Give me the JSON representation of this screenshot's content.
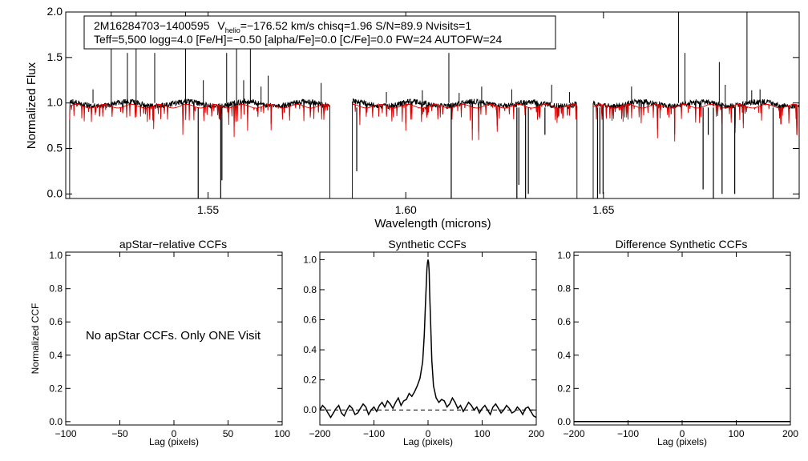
{
  "chart_data": [
    {
      "type": "line",
      "title": "",
      "info_line1": {
        "star_id": "2M16284703−1400595",
        "v_label": "V",
        "v_sub": "helio",
        "v_value": "=−176.52 km/s  chisq=1.96  S/N=89.9  Nvisits=1"
      },
      "info_line2": "Teff=5,500 logg=4.0 [Fe/H]=−0.50 [alpha/Fe]=0.0 [C/Fe]=0.0 FW=24 AUTOFW=24",
      "xlabel": "Wavelength (microns)",
      "ylabel": "Normalized Flux",
      "xlim": [
        1.514,
        1.6995
      ],
      "ylim": [
        -0.05,
        2.0
      ],
      "x_ticks": [
        {
          "v": 1.55,
          "label": "1.55"
        },
        {
          "v": 1.6,
          "label": "1.60"
        },
        {
          "v": 1.65,
          "label": "1.65"
        }
      ],
      "y_ticks": [
        {
          "v": 0.0,
          "label": "0.0"
        },
        {
          "v": 0.5,
          "label": "0.5"
        },
        {
          "v": 1.0,
          "label": "1.0"
        },
        {
          "v": 1.5,
          "label": "1.5"
        },
        {
          "v": 2.0,
          "label": "2.0"
        }
      ],
      "series": [
        {
          "name": "observed",
          "color": "#000000"
        },
        {
          "name": "synthetic",
          "color": "#dd0000"
        }
      ],
      "chips": [
        [
          1.515,
          1.5808
        ],
        [
          1.5865,
          1.6433
        ],
        [
          1.6474,
          1.6995
        ]
      ],
      "emission_spikes": [
        {
          "x": 1.5209,
          "y": 1.15
        },
        {
          "x": 1.5255,
          "y": 2.0
        },
        {
          "x": 1.5296,
          "y": 1.55
        },
        {
          "x": 1.5318,
          "y": 2.0
        },
        {
          "x": 1.5365,
          "y": 1.55
        },
        {
          "x": 1.5443,
          "y": 2.0
        },
        {
          "x": 1.5488,
          "y": 1.25
        },
        {
          "x": 1.5547,
          "y": 1.55
        },
        {
          "x": 1.5572,
          "y": 1.6
        },
        {
          "x": 1.559,
          "y": 1.25
        },
        {
          "x": 1.5607,
          "y": 1.9
        },
        {
          "x": 1.5634,
          "y": 1.18
        },
        {
          "x": 1.5652,
          "y": 1.3
        },
        {
          "x": 1.5786,
          "y": 1.22
        },
        {
          "x": 1.5951,
          "y": 1.12
        },
        {
          "x": 1.6042,
          "y": 1.14
        },
        {
          "x": 1.6109,
          "y": 1.55
        },
        {
          "x": 1.6135,
          "y": 1.11
        },
        {
          "x": 1.6192,
          "y": 1.18
        },
        {
          "x": 1.6268,
          "y": 1.15
        },
        {
          "x": 1.6369,
          "y": 1.2
        },
        {
          "x": 1.6414,
          "y": 1.12
        },
        {
          "x": 1.6571,
          "y": 1.18
        },
        {
          "x": 1.669,
          "y": 2.0
        },
        {
          "x": 1.6706,
          "y": 1.55
        },
        {
          "x": 1.6793,
          "y": 1.45
        },
        {
          "x": 1.6808,
          "y": 1.2
        },
        {
          "x": 1.6863,
          "y": 2.0
        },
        {
          "x": 1.6875,
          "y": 1.14
        },
        {
          "x": 1.6896,
          "y": 1.15
        }
      ],
      "absorption_drops": [
        {
          "x": 1.5475,
          "y": -0.05
        },
        {
          "x": 1.5532,
          "y": -0.05
        },
        {
          "x": 1.5535,
          "y": 0.15
        },
        {
          "x": 1.5876,
          "y": 0.25
        },
        {
          "x": 1.6115,
          "y": -0.05
        },
        {
          "x": 1.6281,
          "y": -0.05
        },
        {
          "x": 1.6286,
          "y": 0.1
        },
        {
          "x": 1.6303,
          "y": -0.05
        },
        {
          "x": 1.631,
          "y": 0.0
        },
        {
          "x": 1.6352,
          "y": 0.65
        },
        {
          "x": 1.6485,
          "y": -0.05
        },
        {
          "x": 1.6491,
          "y": 0.0
        },
        {
          "x": 1.6499,
          "y": 0.0
        },
        {
          "x": 1.6752,
          "y": 0.05
        },
        {
          "x": 1.6765,
          "y": 0.65
        },
        {
          "x": 1.6778,
          "y": -0.05
        },
        {
          "x": 1.68,
          "y": 0.0
        },
        {
          "x": 1.6832,
          "y": 0.0
        },
        {
          "x": 1.6929,
          "y": -0.05
        }
      ]
    },
    {
      "type": "line",
      "title": "apStar−relative CCFs",
      "xlabel": "Lag (pixels)",
      "ylabel": "Normalized CCF",
      "xlim": [
        -100,
        100
      ],
      "ylim": [
        -0.02,
        1.02
      ],
      "x_ticks": [
        {
          "v": -100,
          "label": "−100"
        },
        {
          "v": -50,
          "label": "−50"
        },
        {
          "v": 0,
          "label": "0"
        },
        {
          "v": 50,
          "label": "50"
        },
        {
          "v": 100,
          "label": "100"
        }
      ],
      "y_ticks": [
        {
          "v": 0.0,
          "label": "0.0"
        },
        {
          "v": 0.2,
          "label": "0.2"
        },
        {
          "v": 0.4,
          "label": "0.4"
        },
        {
          "v": 0.6,
          "label": "0.6"
        },
        {
          "v": 0.8,
          "label": "0.8"
        },
        {
          "v": 1.0,
          "label": "1.0"
        }
      ],
      "annotation": "No apStar CCFs.  Only ONE Visit",
      "series": []
    },
    {
      "type": "line",
      "title": "Synthetic CCFs",
      "xlabel": "Lag (pixels)",
      "ylabel": "",
      "xlim": [
        -200,
        200
      ],
      "ylim": [
        -0.1,
        1.05
      ],
      "x_ticks": [
        {
          "v": -200,
          "label": "−200"
        },
        {
          "v": -100,
          "label": "−100"
        },
        {
          "v": 0,
          "label": "0"
        },
        {
          "v": 100,
          "label": "100"
        },
        {
          "v": 200,
          "label": "200"
        }
      ],
      "y_ticks": [
        {
          "v": 0.0,
          "label": "0.0"
        },
        {
          "v": 0.2,
          "label": "0.2"
        },
        {
          "v": 0.4,
          "label": "0.4"
        },
        {
          "v": 0.6,
          "label": "0.6"
        },
        {
          "v": 0.8,
          "label": "0.8"
        },
        {
          "v": 1.0,
          "label": "1.0"
        }
      ],
      "baseline": 0.0,
      "series": [
        {
          "name": "ccf",
          "x": [
            -200,
            -195,
            -190,
            -185,
            -180,
            -175,
            -170,
            -165,
            -160,
            -155,
            -150,
            -145,
            -140,
            -135,
            -130,
            -125,
            -120,
            -115,
            -110,
            -105,
            -100,
            -95,
            -90,
            -85,
            -80,
            -75,
            -70,
            -65,
            -60,
            -55,
            -50,
            -45,
            -40,
            -35,
            -30,
            -25,
            -20,
            -15,
            -10,
            -7,
            -5,
            -3,
            -2,
            -1,
            0,
            1,
            2,
            3,
            5,
            7,
            10,
            15,
            20,
            25,
            30,
            35,
            40,
            45,
            50,
            55,
            60,
            65,
            70,
            75,
            80,
            85,
            90,
            95,
            100,
            105,
            110,
            115,
            120,
            125,
            130,
            135,
            140,
            145,
            150,
            155,
            160,
            165,
            170,
            175,
            180,
            185,
            190,
            195,
            200
          ],
          "y": [
            0.0,
            0.03,
            0.01,
            -0.02,
            -0.05,
            -0.02,
            0.01,
            0.03,
            -0.02,
            -0.04,
            0.0,
            0.03,
            0.01,
            -0.03,
            -0.02,
            0.01,
            0.04,
            0.02,
            -0.03,
            0.0,
            0.02,
            -0.01,
            0.03,
            0.05,
            0.02,
            0.06,
            0.04,
            0.01,
            0.05,
            0.08,
            0.03,
            0.06,
            0.07,
            0.11,
            0.09,
            0.12,
            0.16,
            0.21,
            0.32,
            0.5,
            0.68,
            0.86,
            0.94,
            0.98,
            1.0,
            0.98,
            0.92,
            0.78,
            0.55,
            0.33,
            0.16,
            0.08,
            0.05,
            0.07,
            0.06,
            0.02,
            0.04,
            0.08,
            0.05,
            0.01,
            0.03,
            -0.01,
            0.02,
            0.05,
            0.03,
            0.0,
            0.02,
            -0.02,
            0.01,
            0.03,
            0.0,
            -0.03,
            0.02,
            0.04,
            0.01,
            -0.02,
            0.0,
            0.03,
            0.01,
            -0.02,
            -0.01,
            0.02,
            0.0,
            -0.03,
            0.01,
            0.02,
            -0.01,
            -0.04,
            -0.05
          ]
        }
      ]
    },
    {
      "type": "line",
      "title": "Difference Synthetic CCFs",
      "xlabel": "Lag (pixels)",
      "ylabel": "",
      "xlim": [
        -200,
        200
      ],
      "ylim": [
        -0.02,
        1.02
      ],
      "x_ticks": [
        {
          "v": -200,
          "label": "−200"
        },
        {
          "v": -100,
          "label": "−100"
        },
        {
          "v": 0,
          "label": "0"
        },
        {
          "v": 100,
          "label": "100"
        },
        {
          "v": 200,
          "label": "200"
        }
      ],
      "y_ticks": [
        {
          "v": 0.0,
          "label": "0.0"
        },
        {
          "v": 0.2,
          "label": "0.2"
        },
        {
          "v": 0.4,
          "label": "0.4"
        },
        {
          "v": 0.6,
          "label": "0.6"
        },
        {
          "v": 0.8,
          "label": "0.8"
        },
        {
          "v": 1.0,
          "label": "1.0"
        }
      ],
      "series": [
        {
          "name": "difference",
          "x": [
            -200,
            200
          ],
          "y": [
            0.0,
            0.0
          ]
        }
      ]
    }
  ]
}
